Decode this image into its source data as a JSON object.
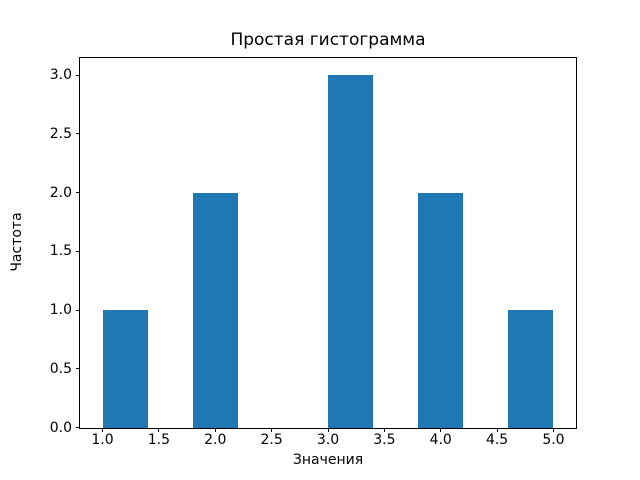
{
  "chart_data": {
    "type": "bar",
    "subtype": "histogram",
    "title": "Простая гистограмма",
    "xlabel": "Значения",
    "ylabel": "Частота",
    "xlim": [
      0.8,
      5.2
    ],
    "ylim": [
      0,
      3.15
    ],
    "grid": false,
    "legend": null,
    "bar_color": "#1f77b4",
    "axis_color": "#000000",
    "background_color": "#ffffff",
    "x_ticks": [
      {
        "value": 1.0,
        "label": "1.0"
      },
      {
        "value": 1.5,
        "label": "1.5"
      },
      {
        "value": 2.0,
        "label": "2.0"
      },
      {
        "value": 2.5,
        "label": "2.5"
      },
      {
        "value": 3.0,
        "label": "3.0"
      },
      {
        "value": 3.5,
        "label": "3.5"
      },
      {
        "value": 4.0,
        "label": "4.0"
      },
      {
        "value": 4.5,
        "label": "4.5"
      },
      {
        "value": 5.0,
        "label": "5.0"
      }
    ],
    "y_ticks": [
      {
        "value": 0.0,
        "label": "0.0"
      },
      {
        "value": 0.5,
        "label": "0.5"
      },
      {
        "value": 1.0,
        "label": "1.0"
      },
      {
        "value": 1.5,
        "label": "1.5"
      },
      {
        "value": 2.0,
        "label": "2.0"
      },
      {
        "value": 2.5,
        "label": "2.5"
      },
      {
        "value": 3.0,
        "label": "3.0"
      }
    ],
    "bin_edges": [
      1.0,
      1.4,
      1.8,
      2.2,
      2.6,
      3.0,
      3.4,
      3.8,
      4.2,
      4.6,
      5.0
    ],
    "counts": [
      1,
      0,
      2,
      0,
      0,
      3,
      0,
      2,
      0,
      1
    ],
    "bars": [
      {
        "x0": 1.0,
        "x1": 1.4,
        "height": 1
      },
      {
        "x0": 1.8,
        "x1": 2.2,
        "height": 2
      },
      {
        "x0": 3.0,
        "x1": 3.4,
        "height": 3
      },
      {
        "x0": 3.8,
        "x1": 4.2,
        "height": 2
      },
      {
        "x0": 4.6,
        "x1": 5.0,
        "height": 1
      }
    ]
  }
}
